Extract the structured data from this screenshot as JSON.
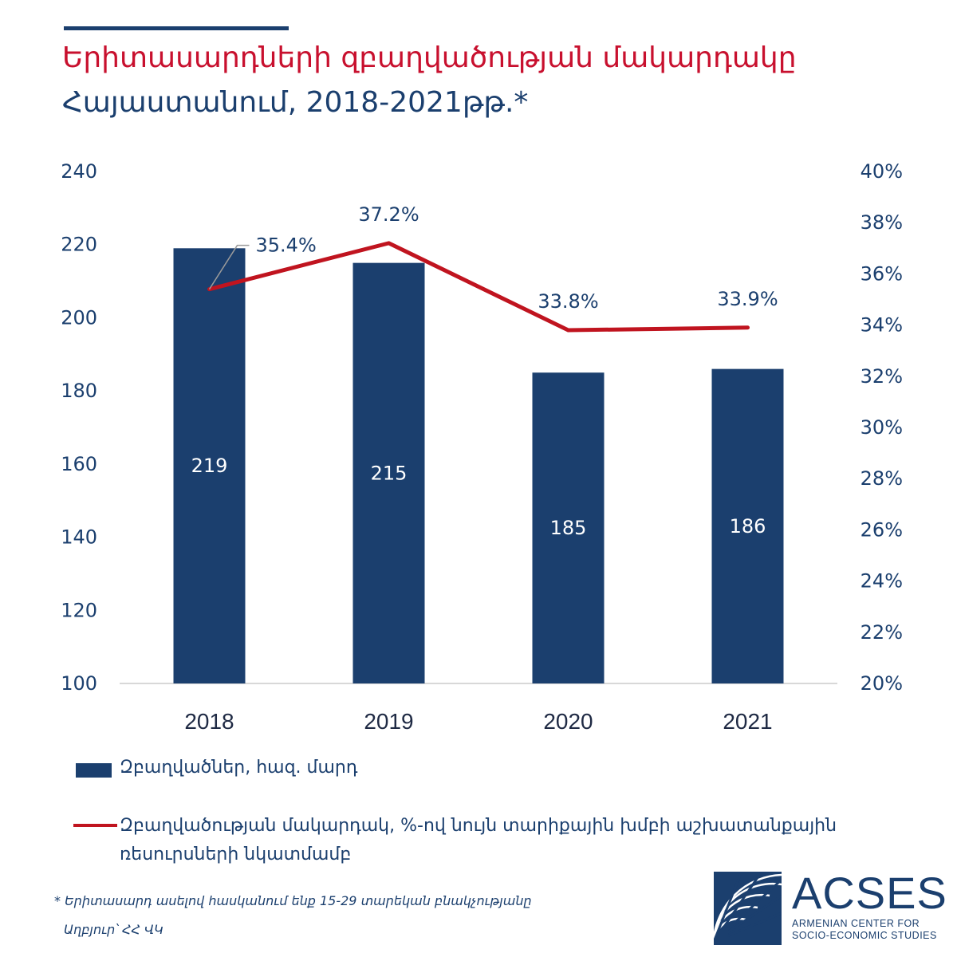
{
  "header": {
    "title_line1": "Երիտասարդների զբաղվածության մակարդակը",
    "title_line2": "Հայաստանում, 2018-2021թթ.*"
  },
  "colors": {
    "bar": "#1b3f6e",
    "line": "#c0141f",
    "title_red": "#c8102e",
    "text": "#1b3f6e",
    "axis_line": "#cccccc"
  },
  "chart_data": {
    "type": "bar",
    "categories": [
      "2018",
      "2019",
      "2020",
      "2021"
    ],
    "series": [
      {
        "name": "Զբաղվածներ, հազ. մարդ",
        "type": "bar",
        "axis": "left",
        "values": [
          219,
          215,
          185,
          186
        ],
        "labels": [
          "219",
          "215",
          "185",
          "186"
        ]
      },
      {
        "name": "Զբաղվածության մակարդակ, %-ով նույն տարիքային խմբի աշխատանքային ռեսուրսների նկատմամբ",
        "type": "line",
        "axis": "right",
        "values": [
          35.4,
          37.2,
          33.8,
          33.9
        ],
        "labels": [
          "35.4%",
          "37.2%",
          "33.8%",
          "33.9%"
        ]
      }
    ],
    "left_axis": {
      "ylim": [
        100,
        240
      ],
      "ticks": [
        "100",
        "120",
        "140",
        "160",
        "180",
        "200",
        "220",
        "240"
      ]
    },
    "right_axis": {
      "ylim": [
        20,
        40
      ],
      "ticks": [
        "20%",
        "22%",
        "24%",
        "26%",
        "28%",
        "30%",
        "32%",
        "34%",
        "36%",
        "38%",
        "40%"
      ]
    },
    "grid": false,
    "legend": "bottom"
  },
  "legend": {
    "bar_label": "Զբաղվածներ, հազ. մարդ",
    "line_label": "Զբաղվածության մակարդակ, %-ով նույն տարիքային խմբի աշխատանքային ռեսուրսների նկատմամբ"
  },
  "footnote": "* Երիտասարդ ասելով հասկանում ենք 15-29 տարեկան բնակչությանը",
  "source": "Աղբյուր՝ ՀՀ ՎԿ",
  "logo": {
    "name": "ACSES",
    "subtitle_line1": "ARMENIAN CENTER FOR",
    "subtitle_line2": "SOCIO-ECONOMIC STUDIES"
  }
}
